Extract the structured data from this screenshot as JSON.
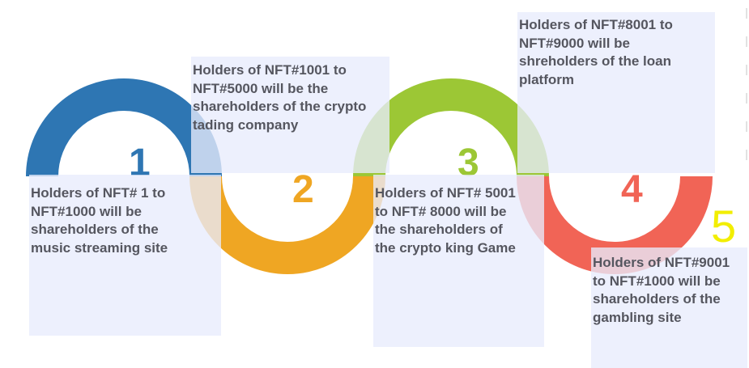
{
  "colors": {
    "step1": "#2e76b3",
    "step2": "#efa623",
    "step3": "#9cc735",
    "step4": "#f16456",
    "step5": "#f2ee00",
    "text": "#55565f"
  },
  "steps": [
    {
      "number": "1",
      "text": "Holders of NFT# 1 to\nNFT#1000 will be\nshareholders of the\nmusic streaming site"
    },
    {
      "number": "2",
      "text": "Holders of NFT#1001 to\nNFT#5000 will be the\nshareholders of the crypto\ntading company"
    },
    {
      "number": "3",
      "text": "Holders of NFT# 5001\nto NFT# 8000 will be\nthe shareholders of\nthe crypto king Game"
    },
    {
      "number": "4",
      "text": "Holders of NFT#8001 to\nNFT#9000 will be\nshreholders of the loan\nplatform"
    },
    {
      "number": "5",
      "text": "Holders of NFT#9001\nto NFT#1000 will be\nshareholders of the\ngambling site"
    }
  ]
}
